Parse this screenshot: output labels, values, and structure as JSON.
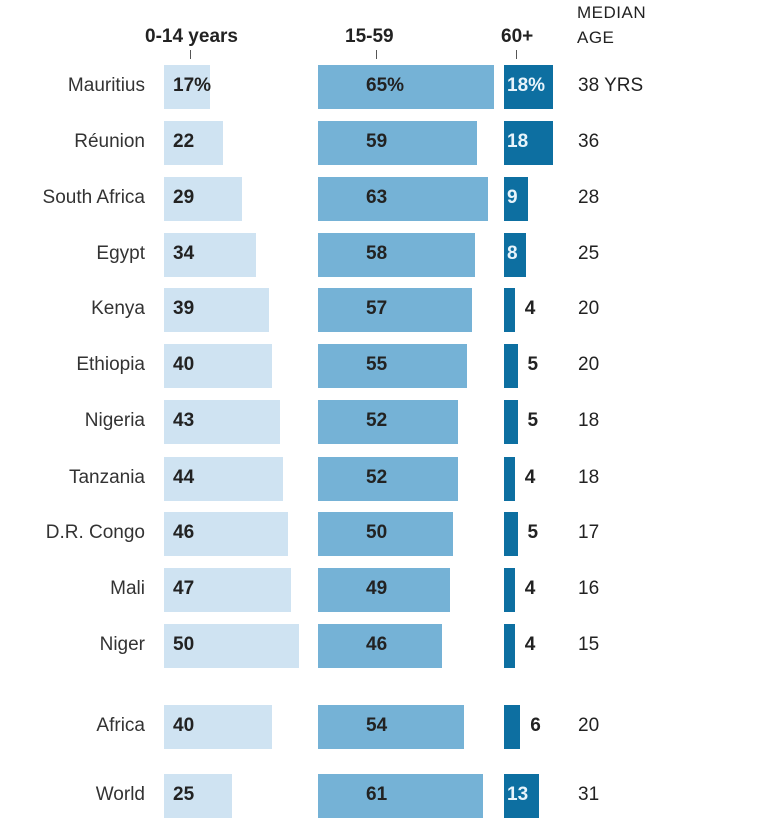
{
  "chart_data": {
    "type": "bar",
    "orientation": "horizontal",
    "column_headers": [
      "0-14 years",
      "15-59",
      "60+"
    ],
    "median_header": [
      "MEDIAN",
      "AGE"
    ],
    "first_row_value_suffix": "%",
    "first_row_median_suffix": " YRS",
    "categories": [
      "Mauritius",
      "Réunion",
      "South Africa",
      "Egypt",
      "Kenya",
      "Ethiopia",
      "Nigeria",
      "Tanzania",
      "D.R. Congo",
      "Mali",
      "Niger",
      "Africa",
      "World"
    ],
    "series": [
      {
        "name": "0-14 years",
        "color": "#cfe3f2",
        "values": [
          17,
          22,
          29,
          34,
          39,
          40,
          43,
          44,
          46,
          47,
          50,
          40,
          25
        ]
      },
      {
        "name": "15-59",
        "color": "#75b2d6",
        "values": [
          65,
          59,
          63,
          58,
          57,
          55,
          52,
          52,
          50,
          49,
          46,
          54,
          61
        ]
      },
      {
        "name": "60+",
        "color": "#0d6fa1",
        "values": [
          18,
          18,
          9,
          8,
          4,
          5,
          5,
          4,
          5,
          4,
          4,
          6,
          13
        ]
      }
    ],
    "median_age": [
      38,
      36,
      28,
      25,
      20,
      20,
      18,
      18,
      17,
      16,
      15,
      20,
      31
    ],
    "summary_rows": [
      "Africa",
      "World"
    ],
    "grid": false,
    "legend": "none"
  }
}
